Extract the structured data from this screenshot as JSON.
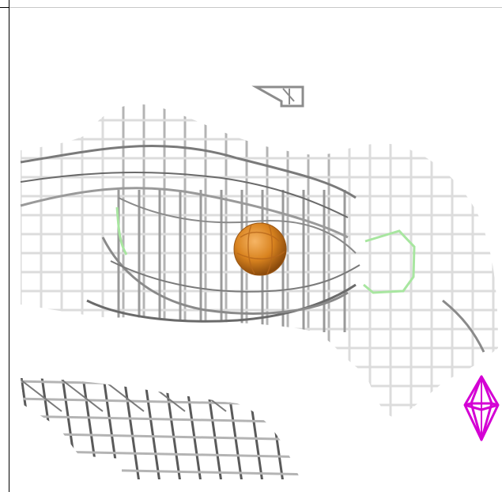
{
  "viewer": {
    "background_color": "#ffffff",
    "frame_color": "#000000"
  },
  "scene": {
    "mesh_color_light": "#dcdcdc",
    "mesh_color_mid": "#b4b4b4",
    "mesh_color_dark": "#5a5a5a",
    "ligand_outline_color": "#a8e6a0",
    "central_sphere_color": "#d9831f",
    "marker_color": "#d400d4",
    "central_sphere_icon": "sphere-icon",
    "marker_icon": "bipyramid-icon"
  }
}
